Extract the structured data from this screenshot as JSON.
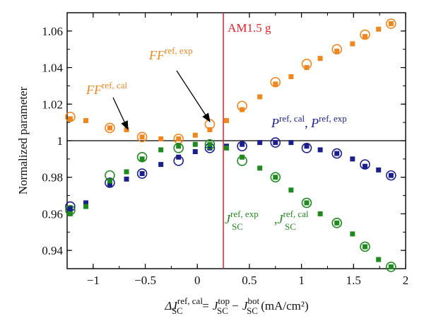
{
  "chart_data": {
    "type": "scatter",
    "xlabel": {
      "prefix": "ΔJ",
      "sup1": "ref, cal",
      "sub1": "SC",
      "eq": " = J",
      "sup2": "top",
      "sub2": "SC",
      "minus": " − J",
      "sup3": "bot",
      "sub3": "SC",
      "unit": " (mA/cm²)"
    },
    "ylabel": "Normalized parameter",
    "xlim": [
      -1.25,
      2.0
    ],
    "ylim": [
      0.93,
      1.07
    ],
    "xticks": [
      "−1",
      "−0.5",
      "0",
      "0.5",
      "1",
      "1.5",
      "2"
    ],
    "xtick_values": [
      -1,
      -0.5,
      0,
      0.5,
      1,
      1.5,
      2
    ],
    "yticks": [
      "0.94",
      "0.96",
      "0.98",
      "1",
      "1.02",
      "1.04",
      "1.06"
    ],
    "ytick_values": [
      0.94,
      0.96,
      0.98,
      1.0,
      1.02,
      1.04,
      1.06
    ],
    "hline": 1.0,
    "vline": {
      "x": 0.25,
      "label": "AM1.5 g",
      "color": "#e8202a"
    },
    "colors": {
      "ff": "#f0861e",
      "p": "#1a1f8c",
      "j": "#1f8a1f"
    },
    "annotations": {
      "ff_cal": {
        "base": "FF",
        "sup": "ref, cal"
      },
      "ff_exp": {
        "base": "FF",
        "sup": "ref, exp"
      },
      "p": {
        "base1": "P",
        "sup1": "ref, cal",
        "sep": ", ",
        "base2": "P",
        "sup2": "ref, exp"
      },
      "j": {
        "base1": "J",
        "sup1": "ref, exp",
        "sub1": "SC",
        "sep": ",",
        "base2": "J",
        "sup2": "ref, cal",
        "sub2": "SC"
      }
    },
    "series": [
      {
        "marker": "circle",
        "color_key": "ff",
        "x": [
          -1.22,
          -0.84,
          -0.53,
          -0.18,
          0.12,
          0.43,
          0.75,
          1.05,
          1.34,
          1.61,
          1.86
        ],
        "y": [
          1.013,
          1.007,
          1.002,
          1.001,
          1.009,
          1.019,
          1.032,
          1.042,
          1.05,
          1.058,
          1.064
        ]
      },
      {
        "marker": "square",
        "color_key": "ff",
        "x": [
          -1.22,
          -1.07,
          -0.84,
          -0.68,
          -0.53,
          -0.35,
          -0.18,
          -0.02,
          0.12,
          0.28,
          0.43,
          0.6,
          0.75,
          0.9,
          1.05,
          1.18,
          1.34,
          1.49,
          1.61,
          1.74,
          1.86
        ],
        "y": [
          1.012,
          1.011,
          1.007,
          1.006,
          1.002,
          1.001,
          1.001,
          1.003,
          1.006,
          1.011,
          1.017,
          1.024,
          1.031,
          1.035,
          1.04,
          1.045,
          1.049,
          1.053,
          1.057,
          1.061,
          1.064
        ]
      },
      {
        "marker": "circle",
        "color_key": "p",
        "x": [
          -1.22,
          -0.84,
          -0.53,
          -0.18,
          0.12,
          0.43,
          0.75,
          1.05,
          1.34,
          1.61,
          1.86
        ],
        "y": [
          0.964,
          0.977,
          0.982,
          0.989,
          0.996,
          0.997,
          0.999,
          0.996,
          0.993,
          0.987,
          0.981
        ]
      },
      {
        "marker": "square",
        "color_key": "p",
        "x": [
          -1.22,
          -1.07,
          -0.84,
          -0.68,
          -0.53,
          -0.35,
          -0.18,
          -0.02,
          0.12,
          0.28,
          0.43,
          0.6,
          0.75,
          0.9,
          1.05,
          1.18,
          1.34,
          1.49,
          1.61,
          1.74,
          1.86
        ],
        "y": [
          0.963,
          0.966,
          0.976,
          0.979,
          0.982,
          0.987,
          0.991,
          0.994,
          0.996,
          0.997,
          0.998,
          0.999,
          0.999,
          0.999,
          0.997,
          0.995,
          0.993,
          0.99,
          0.986,
          0.984,
          0.981
        ]
      },
      {
        "marker": "circle",
        "color_key": "j",
        "x": [
          -1.22,
          -0.84,
          -0.53,
          -0.18,
          0.12,
          0.43,
          0.75,
          1.05,
          1.34,
          1.61,
          1.86
        ],
        "y": [
          0.962,
          0.981,
          0.991,
          0.996,
          0.998,
          0.989,
          0.98,
          0.966,
          0.955,
          0.942,
          0.931
        ]
      },
      {
        "marker": "square",
        "color_key": "j",
        "x": [
          -1.22,
          -1.07,
          -0.84,
          -0.68,
          -0.53,
          -0.35,
          -0.18,
          -0.02,
          0.12,
          0.28,
          0.43,
          0.6,
          0.75,
          0.9,
          1.05,
          1.18,
          1.34,
          1.49,
          1.61,
          1.74,
          1.86
        ],
        "y": [
          0.96,
          0.964,
          0.978,
          0.983,
          0.99,
          0.995,
          0.997,
          0.998,
          0.998,
          0.996,
          0.991,
          0.985,
          0.98,
          0.973,
          0.966,
          0.96,
          0.955,
          0.949,
          0.942,
          0.935,
          0.931
        ]
      }
    ]
  }
}
